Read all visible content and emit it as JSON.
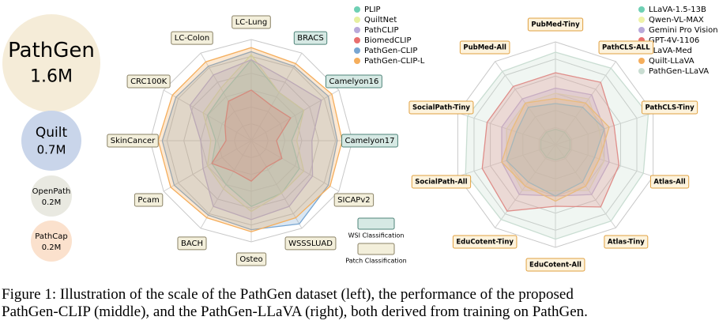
{
  "bubbles": [
    {
      "name": "PathGen",
      "size": "1.6M"
    },
    {
      "name": "Quilt",
      "size": "0.7M"
    },
    {
      "name": "OpenPath",
      "size": "0.2M"
    },
    {
      "name": "PathCap",
      "size": "0.2M"
    }
  ],
  "chart_data": [
    {
      "type": "radar",
      "categories": [
        "LC-Lung",
        "BRACS",
        "Camelyon16",
        "Camelyon17",
        "SICAPv2",
        "WSSSLUAD",
        "Osteo",
        "BACH",
        "Pcam",
        "SkinCancer",
        "CRC100K",
        "LC-Colon"
      ],
      "category_groups": [
        1,
        0,
        0,
        0,
        1,
        1,
        1,
        1,
        1,
        1,
        1,
        1
      ],
      "groups": [
        {
          "label": "WSI Classification",
          "fill": "#d6e9e4",
          "stroke": "#4f8479"
        },
        {
          "label": "Patch Classification",
          "fill": "#f3efdb",
          "stroke": "#8a8266"
        }
      ],
      "rlim": [
        0,
        100
      ],
      "series": [
        {
          "name": "PLIP",
          "color": "#6fd0b4",
          "values": [
            80,
            55,
            60,
            40,
            55,
            60,
            65,
            50,
            45,
            35,
            50,
            55
          ]
        },
        {
          "name": "QuiltNet",
          "color": "#e6f0a0",
          "values": [
            85,
            55,
            60,
            45,
            60,
            60,
            70,
            55,
            50,
            40,
            55,
            60
          ]
        },
        {
          "name": "PathCLIP",
          "color": "#b9a9da",
          "values": [
            80,
            70,
            80,
            60,
            70,
            75,
            78,
            75,
            55,
            50,
            70,
            75
          ]
        },
        {
          "name": "BiomedCLIP",
          "color": "#e86f6f",
          "values": [
            50,
            40,
            45,
            25,
            35,
            30,
            40,
            35,
            45,
            25,
            30,
            45
          ]
        },
        {
          "name": "PathGen-CLIP",
          "color": "#78a6d2",
          "values": [
            88,
            85,
            88,
            85,
            88,
            95,
            88,
            85,
            88,
            88,
            86,
            85
          ]
        },
        {
          "name": "PathGen-CLIP-L",
          "color": "#f5ae5c",
          "values": [
            92,
            88,
            92,
            90,
            90,
            88,
            90,
            88,
            92,
            92,
            90,
            90
          ]
        }
      ]
    },
    {
      "type": "radar",
      "categories": [
        "PubMed-Tiny",
        "PathCLS-ALL",
        "PathCLS-Tiny",
        "Atlas-All",
        "Atlas-Tiny",
        "EduCotent-All",
        "EduCotent-Tiny",
        "SocialPath-All",
        "SocialPath-Tiny",
        "PubMed-All"
      ],
      "rlim": [
        0,
        100
      ],
      "series": [
        {
          "name": "LLaVA-1.5-13B",
          "color": "#6fd0b4",
          "values": [
            15,
            15,
            15,
            15,
            15,
            15,
            15,
            15,
            15,
            15
          ]
        },
        {
          "name": "Qwen-VL-MAX",
          "color": "#eef2a8",
          "values": [
            50,
            55,
            45,
            50,
            55,
            45,
            55,
            50,
            50,
            50
          ]
        },
        {
          "name": "Gemini Pro Vision",
          "color": "#b9a9da",
          "values": [
            55,
            60,
            50,
            55,
            60,
            50,
            60,
            55,
            55,
            55
          ]
        },
        {
          "name": "GPT-4V-1106",
          "color": "#e86f6f",
          "values": [
            70,
            75,
            60,
            65,
            75,
            60,
            80,
            75,
            70,
            70
          ]
        },
        {
          "name": "LLaVA-Med",
          "color": "#78a6d2",
          "values": [
            40,
            45,
            50,
            40,
            45,
            50,
            45,
            50,
            40,
            45
          ]
        },
        {
          "name": "Quilt-LLaVA",
          "color": "#f5ae5c",
          "values": [
            45,
            50,
            55,
            45,
            50,
            55,
            50,
            55,
            45,
            50
          ]
        },
        {
          "name": "PathGen-LLaVA",
          "color": "#c9ddd2",
          "values": [
            90,
            92,
            95,
            90,
            92,
            92,
            90,
            92,
            90,
            88
          ]
        }
      ]
    }
  ],
  "caption": [
    "Figure 1: Illustration of the scale of the PathGen dataset (left), the performance of the proposed",
    "PathGen-CLIP (middle), and the PathGen-LLaVA (right), both derived from training on PathGen."
  ]
}
